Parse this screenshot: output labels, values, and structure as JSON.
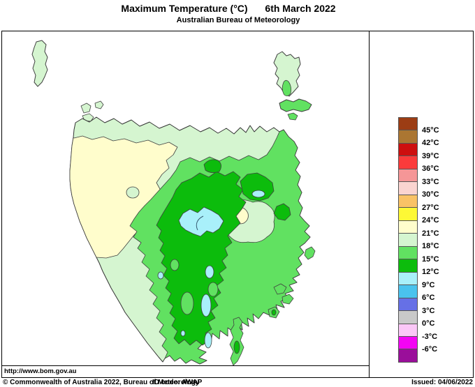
{
  "title": {
    "main": "Maximum Temperature (°C)",
    "date": "6th March 2022",
    "subtitle": "Australian Bureau of Meteorology"
  },
  "legend": {
    "swatches": [
      "#9c3d14",
      "#ab7632",
      "#cd0f0f",
      "#fb3b3b",
      "#f59697",
      "#fad4d0",
      "#f9c266",
      "#fdf835",
      "#fffdcc",
      "#d5f5d0",
      "#61e161",
      "#0cbc0c",
      "#a9f0fa",
      "#4ac3ee",
      "#6670e6",
      "#c9c9c9",
      "#fbc7f7",
      "#f304f3",
      "#9a0e9a"
    ],
    "boundary_labels": [
      "45°C",
      "42°C",
      "39°C",
      "36°C",
      "33°C",
      "30°C",
      "27°C",
      "24°C",
      "21°C",
      "18°C",
      "15°C",
      "12°C",
      "9°C",
      "6°C",
      "3°C",
      "0°C",
      "-3°C",
      "-6°C"
    ]
  },
  "map": {
    "band_colors": {
      "cream": "#fffdcc",
      "pale_green": "#d5f5d0",
      "medium_green": "#61e161",
      "dark_green": "#0cbc0c",
      "cyan": "#a9f0fa"
    }
  },
  "footer": {
    "url": "http://www.bom.gov.au",
    "copyright": "© Commonwealth of Australia 2022, Bureau of Meteorology",
    "id_code": "ID code: AWAP",
    "issued": "Issued: 04/06/2022"
  }
}
